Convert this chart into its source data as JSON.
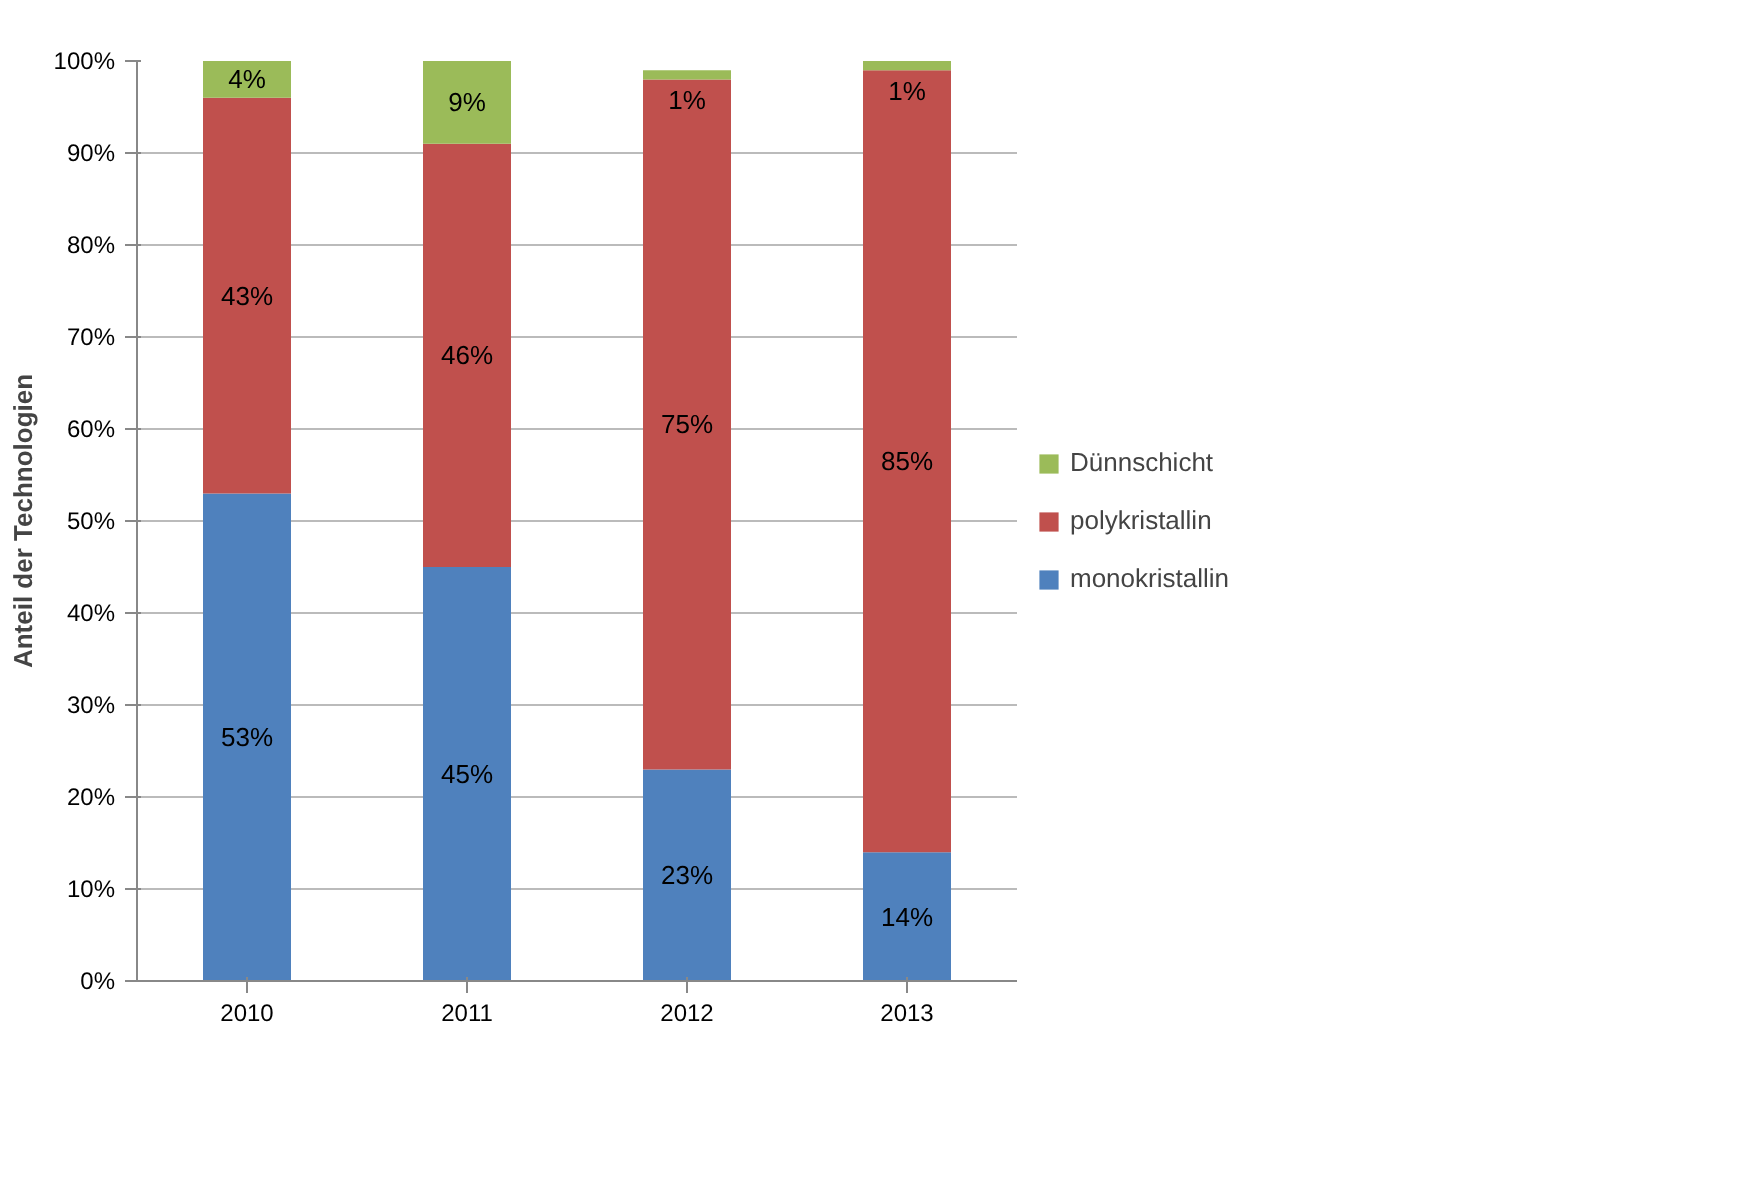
{
  "chart_data": {
    "type": "bar",
    "stacked": true,
    "ylabel": "Anteil der Technologien",
    "categories": [
      "2010",
      "2011",
      "2012",
      "2013"
    ],
    "series": [
      {
        "name": "monokristallin",
        "color": "#4f81bd",
        "values": [
          53,
          45,
          23,
          14
        ],
        "value_labels": [
          "53%",
          "45%",
          "23%",
          "14%"
        ]
      },
      {
        "name": "polykristallin",
        "color": "#c0504d",
        "values": [
          43,
          46,
          75,
          85
        ],
        "value_labels": [
          "43%",
          "46%",
          "75%",
          "85%"
        ]
      },
      {
        "name": "Dünnschicht",
        "color": "#9bbb59",
        "values": [
          4,
          9,
          1,
          1
        ],
        "value_labels": [
          "4%",
          "9%",
          "1%",
          "1%"
        ]
      }
    ],
    "ylim": [
      0,
      100
    ],
    "yticks": [
      {
        "value": 0,
        "label": "0%"
      },
      {
        "value": 10,
        "label": "10%"
      },
      {
        "value": 20,
        "label": "20%"
      },
      {
        "value": 30,
        "label": "30%"
      },
      {
        "value": 40,
        "label": "40%"
      },
      {
        "value": 50,
        "label": "50%"
      },
      {
        "value": 60,
        "label": "60%"
      },
      {
        "value": 70,
        "label": "70%"
      },
      {
        "value": 80,
        "label": "80%"
      },
      {
        "value": 90,
        "label": "90%"
      },
      {
        "value": 100,
        "label": "100%"
      }
    ],
    "grid": "y",
    "legend": "right"
  }
}
